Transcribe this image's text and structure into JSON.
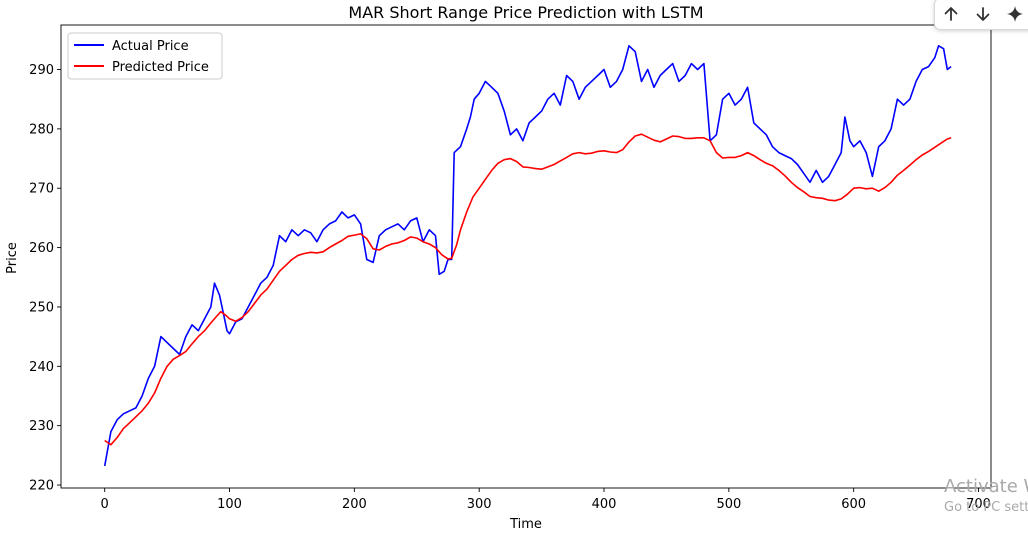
{
  "colors": {
    "actual": "#0000ff",
    "predicted": "#ff0000",
    "axis": "#000000",
    "background": "#ffffff"
  },
  "toolbar": {
    "icons": [
      "arrow-up-icon",
      "arrow-down-icon",
      "sparkle-icon"
    ]
  },
  "watermark": {
    "line1": "Activate W",
    "line2": "Go to PC sett"
  },
  "chart_data": {
    "type": "line",
    "title": "MAR Short Range Price Prediction with LSTM",
    "xlabel": "Time",
    "ylabel": "Price",
    "xlim": [
      -35,
      710
    ],
    "ylim": [
      219.5,
      297.5
    ],
    "xticks": [
      0,
      100,
      200,
      300,
      400,
      500,
      600,
      700
    ],
    "yticks": [
      220,
      230,
      240,
      250,
      260,
      270,
      280,
      290
    ],
    "grid": false,
    "legend_position": "upper-left",
    "series": [
      {
        "name": "Actual Price",
        "color": "#0000ff",
        "points": [
          [
            0,
            223.2
          ],
          [
            5,
            229
          ],
          [
            10,
            231
          ],
          [
            15,
            232
          ],
          [
            20,
            232.5
          ],
          [
            25,
            233
          ],
          [
            30,
            235
          ],
          [
            35,
            238
          ],
          [
            40,
            240
          ],
          [
            45,
            245
          ],
          [
            50,
            244
          ],
          [
            55,
            243
          ],
          [
            60,
            242
          ],
          [
            65,
            245
          ],
          [
            70,
            247
          ],
          [
            75,
            246
          ],
          [
            80,
            248
          ],
          [
            85,
            250
          ],
          [
            88,
            254
          ],
          [
            92,
            252
          ],
          [
            95,
            249
          ],
          [
            98,
            246
          ],
          [
            100,
            245.5
          ],
          [
            105,
            247.5
          ],
          [
            110,
            248
          ],
          [
            115,
            250
          ],
          [
            120,
            252
          ],
          [
            125,
            254
          ],
          [
            130,
            255
          ],
          [
            135,
            257
          ],
          [
            140,
            262
          ],
          [
            145,
            261
          ],
          [
            150,
            263
          ],
          [
            155,
            262
          ],
          [
            160,
            263
          ],
          [
            165,
            262.5
          ],
          [
            170,
            261
          ],
          [
            175,
            263
          ],
          [
            180,
            264
          ],
          [
            185,
            264.5
          ],
          [
            190,
            266
          ],
          [
            195,
            265
          ],
          [
            200,
            265.5
          ],
          [
            205,
            264
          ],
          [
            210,
            258
          ],
          [
            215,
            257.5
          ],
          [
            220,
            262
          ],
          [
            225,
            263
          ],
          [
            230,
            263.5
          ],
          [
            235,
            264
          ],
          [
            240,
            263
          ],
          [
            245,
            264.5
          ],
          [
            250,
            265
          ],
          [
            255,
            261
          ],
          [
            260,
            263
          ],
          [
            265,
            262
          ],
          [
            268,
            255.5
          ],
          [
            272,
            256
          ],
          [
            275,
            258
          ],
          [
            278,
            258
          ],
          [
            280,
            276
          ],
          [
            285,
            277
          ],
          [
            290,
            280
          ],
          [
            293,
            282
          ],
          [
            296,
            285
          ],
          [
            300,
            286
          ],
          [
            305,
            288
          ],
          [
            310,
            287
          ],
          [
            315,
            286
          ],
          [
            320,
            283
          ],
          [
            325,
            279
          ],
          [
            330,
            280
          ],
          [
            335,
            278
          ],
          [
            340,
            281
          ],
          [
            345,
            282
          ],
          [
            350,
            283
          ],
          [
            355,
            285
          ],
          [
            360,
            286
          ],
          [
            365,
            284
          ],
          [
            370,
            289
          ],
          [
            375,
            288
          ],
          [
            380,
            285
          ],
          [
            385,
            287
          ],
          [
            390,
            288
          ],
          [
            395,
            289
          ],
          [
            400,
            290
          ],
          [
            405,
            287
          ],
          [
            410,
            288
          ],
          [
            415,
            290
          ],
          [
            420,
            294
          ],
          [
            425,
            293
          ],
          [
            430,
            288
          ],
          [
            435,
            290
          ],
          [
            440,
            287
          ],
          [
            445,
            289
          ],
          [
            450,
            290
          ],
          [
            455,
            291
          ],
          [
            460,
            288
          ],
          [
            465,
            289
          ],
          [
            470,
            291
          ],
          [
            475,
            290
          ],
          [
            480,
            291
          ],
          [
            485,
            278
          ],
          [
            490,
            279
          ],
          [
            495,
            285
          ],
          [
            500,
            286
          ],
          [
            505,
            284
          ],
          [
            510,
            285
          ],
          [
            515,
            287
          ],
          [
            520,
            281
          ],
          [
            525,
            280
          ],
          [
            530,
            279
          ],
          [
            535,
            277
          ],
          [
            540,
            276
          ],
          [
            545,
            275.5
          ],
          [
            550,
            275
          ],
          [
            555,
            274
          ],
          [
            560,
            272.5
          ],
          [
            565,
            271
          ],
          [
            570,
            273
          ],
          [
            575,
            271
          ],
          [
            580,
            272
          ],
          [
            585,
            274
          ],
          [
            590,
            276
          ],
          [
            593,
            282
          ],
          [
            597,
            278
          ],
          [
            600,
            277
          ],
          [
            605,
            278
          ],
          [
            610,
            276
          ],
          [
            615,
            272
          ],
          [
            620,
            277
          ],
          [
            625,
            278
          ],
          [
            630,
            280
          ],
          [
            635,
            285
          ],
          [
            640,
            284
          ],
          [
            645,
            285
          ],
          [
            650,
            288
          ],
          [
            655,
            290
          ],
          [
            660,
            290.5
          ],
          [
            665,
            292
          ],
          [
            668,
            294
          ],
          [
            672,
            293.5
          ],
          [
            675,
            290
          ],
          [
            678,
            290.5
          ]
        ]
      },
      {
        "name": "Predicted Price",
        "color": "#ff0000",
        "points": [
          [
            0,
            227.5
          ],
          [
            5,
            226.8
          ],
          [
            10,
            228
          ],
          [
            15,
            229.5
          ],
          [
            20,
            230.5
          ],
          [
            25,
            231.5
          ],
          [
            30,
            232.5
          ],
          [
            35,
            233.8
          ],
          [
            40,
            235.5
          ],
          [
            45,
            238
          ],
          [
            50,
            240
          ],
          [
            55,
            241.2
          ],
          [
            60,
            241.8
          ],
          [
            65,
            242.5
          ],
          [
            70,
            243.8
          ],
          [
            75,
            245
          ],
          [
            80,
            246
          ],
          [
            85,
            247.3
          ],
          [
            90,
            248.5
          ],
          [
            93,
            249.2
          ],
          [
            97,
            248.6
          ],
          [
            100,
            248
          ],
          [
            105,
            247.6
          ],
          [
            110,
            248.2
          ],
          [
            115,
            249.2
          ],
          [
            120,
            250.6
          ],
          [
            125,
            252
          ],
          [
            130,
            253
          ],
          [
            135,
            254.5
          ],
          [
            140,
            256
          ],
          [
            145,
            257
          ],
          [
            150,
            258
          ],
          [
            155,
            258.7
          ],
          [
            160,
            259
          ],
          [
            165,
            259.2
          ],
          [
            170,
            259.1
          ],
          [
            175,
            259.3
          ],
          [
            180,
            260
          ],
          [
            185,
            260.6
          ],
          [
            190,
            261.2
          ],
          [
            195,
            261.9
          ],
          [
            200,
            262.1
          ],
          [
            205,
            262.3
          ],
          [
            210,
            261.5
          ],
          [
            215,
            259.8
          ],
          [
            220,
            259.6
          ],
          [
            225,
            260.2
          ],
          [
            230,
            260.6
          ],
          [
            235,
            260.8
          ],
          [
            240,
            261.2
          ],
          [
            245,
            261.8
          ],
          [
            250,
            261.6
          ],
          [
            255,
            261
          ],
          [
            260,
            260.6
          ],
          [
            265,
            260
          ],
          [
            270,
            258.8
          ],
          [
            275,
            258.1
          ],
          [
            278,
            258.2
          ],
          [
            282,
            260.5
          ],
          [
            285,
            263
          ],
          [
            290,
            266
          ],
          [
            295,
            268.5
          ],
          [
            300,
            270
          ],
          [
            305,
            271.5
          ],
          [
            310,
            273
          ],
          [
            315,
            274.2
          ],
          [
            320,
            274.8
          ],
          [
            325,
            275
          ],
          [
            330,
            274.5
          ],
          [
            335,
            273.6
          ],
          [
            340,
            273.5
          ],
          [
            345,
            273.3
          ],
          [
            350,
            273.2
          ],
          [
            355,
            273.6
          ],
          [
            360,
            274
          ],
          [
            365,
            274.6
          ],
          [
            370,
            275.2
          ],
          [
            375,
            275.8
          ],
          [
            380,
            276
          ],
          [
            385,
            275.8
          ],
          [
            390,
            275.9
          ],
          [
            395,
            276.2
          ],
          [
            400,
            276.3
          ],
          [
            405,
            276.1
          ],
          [
            410,
            276
          ],
          [
            415,
            276.5
          ],
          [
            420,
            277.8
          ],
          [
            425,
            278.8
          ],
          [
            430,
            279.1
          ],
          [
            435,
            278.6
          ],
          [
            440,
            278.1
          ],
          [
            445,
            277.8
          ],
          [
            450,
            278.3
          ],
          [
            455,
            278.8
          ],
          [
            460,
            278.7
          ],
          [
            465,
            278.4
          ],
          [
            470,
            278.4
          ],
          [
            475,
            278.5
          ],
          [
            480,
            278.5
          ],
          [
            485,
            278
          ],
          [
            490,
            276
          ],
          [
            495,
            275.1
          ],
          [
            500,
            275.2
          ],
          [
            505,
            275.2
          ],
          [
            510,
            275.5
          ],
          [
            515,
            276
          ],
          [
            520,
            275.5
          ],
          [
            525,
            274.8
          ],
          [
            530,
            274.2
          ],
          [
            535,
            273.8
          ],
          [
            540,
            273
          ],
          [
            545,
            272.1
          ],
          [
            550,
            271
          ],
          [
            555,
            270.1
          ],
          [
            560,
            269.4
          ],
          [
            565,
            268.6
          ],
          [
            570,
            268.4
          ],
          [
            575,
            268.3
          ],
          [
            580,
            268
          ],
          [
            585,
            267.9
          ],
          [
            590,
            268.2
          ],
          [
            595,
            269
          ],
          [
            600,
            270
          ],
          [
            605,
            270.1
          ],
          [
            610,
            269.9
          ],
          [
            615,
            270
          ],
          [
            620,
            269.5
          ],
          [
            625,
            270.1
          ],
          [
            630,
            271
          ],
          [
            635,
            272.2
          ],
          [
            640,
            273
          ],
          [
            645,
            273.9
          ],
          [
            650,
            274.8
          ],
          [
            655,
            275.6
          ],
          [
            660,
            276.2
          ],
          [
            665,
            276.9
          ],
          [
            670,
            277.6
          ],
          [
            675,
            278.3
          ],
          [
            678,
            278.5
          ]
        ]
      }
    ]
  }
}
